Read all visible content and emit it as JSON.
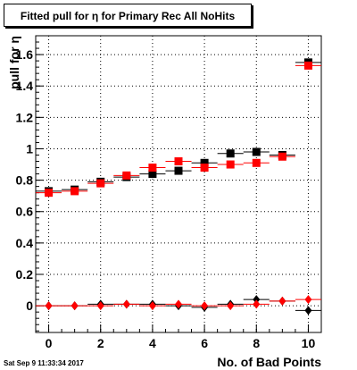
{
  "title": "Fitted pull for η for Primary Rec All NoHits",
  "date_stamp": "Sat Sep  9 11:33:34 2017",
  "colors": {
    "series_black": "#000000",
    "series_red": "#ff0000",
    "grid": "#000000"
  },
  "chart_data": {
    "type": "scatter",
    "title": "Fitted pull for η for Primary Rec All NoHits",
    "xlabel": "No. of Bad Points",
    "ylabel": "pull for η",
    "xlim": [
      -0.5,
      10.5
    ],
    "ylim": [
      -0.17,
      1.72
    ],
    "grid": true,
    "legend": "none",
    "x_ticks": [
      "0",
      "2",
      "4",
      "6",
      "8",
      "10"
    ],
    "y_ticks": [
      "0",
      "0.2",
      "0.4",
      "0.6",
      "0.8",
      "1",
      "1.2",
      "1.4",
      "1.6"
    ],
    "series": [
      {
        "marker": "square",
        "color": "#000000",
        "points": [
          [
            0,
            0.73
          ],
          [
            1,
            0.74
          ],
          [
            2,
            0.79
          ],
          [
            3,
            0.82
          ],
          [
            4,
            0.84
          ],
          [
            5,
            0.86
          ],
          [
            6,
            0.91
          ],
          [
            7,
            0.97
          ],
          [
            8,
            0.98
          ],
          [
            9,
            0.96
          ],
          [
            10,
            1.55
          ]
        ]
      },
      {
        "marker": "square",
        "color": "#ff0000",
        "points": [
          [
            0,
            0.72
          ],
          [
            1,
            0.73
          ],
          [
            2,
            0.78
          ],
          [
            3,
            0.83
          ],
          [
            4,
            0.88
          ],
          [
            5,
            0.92
          ],
          [
            6,
            0.88
          ],
          [
            7,
            0.9
          ],
          [
            8,
            0.91
          ],
          [
            9,
            0.95
          ],
          [
            10,
            1.53
          ]
        ]
      },
      {
        "marker": "diamond",
        "color": "#000000",
        "points": [
          [
            0,
            0.0
          ],
          [
            1,
            0.0
          ],
          [
            2,
            0.01
          ],
          [
            3,
            0.01
          ],
          [
            4,
            0.01
          ],
          [
            5,
            0.0
          ],
          [
            6,
            -0.01
          ],
          [
            7,
            0.01
          ],
          [
            8,
            0.04
          ],
          [
            9,
            0.03
          ],
          [
            10,
            -0.03
          ]
        ]
      },
      {
        "marker": "diamond",
        "color": "#ff0000",
        "points": [
          [
            0,
            0.0
          ],
          [
            1,
            0.0
          ],
          [
            2,
            0.0
          ],
          [
            3,
            0.01
          ],
          [
            4,
            0.0
          ],
          [
            5,
            0.01
          ],
          [
            6,
            0.0
          ],
          [
            7,
            0.0
          ],
          [
            8,
            0.01
          ],
          [
            9,
            0.03
          ],
          [
            10,
            0.04
          ]
        ]
      }
    ]
  }
}
